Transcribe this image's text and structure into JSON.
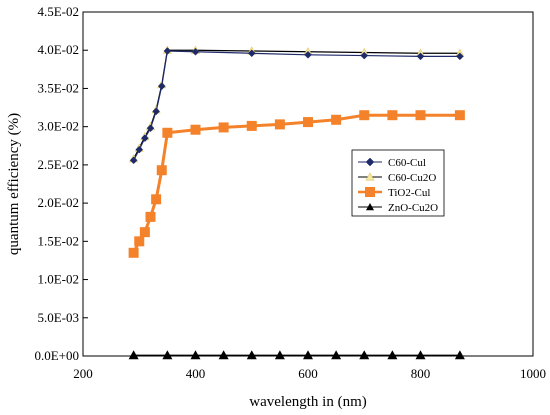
{
  "chart_data": {
    "type": "line",
    "title": "",
    "xlabel": "wavelength in (nm)",
    "ylabel": "quantum efficiency (%)",
    "xlim": [
      200,
      1000
    ],
    "ylim": [
      0,
      0.045
    ],
    "x_ticks": [
      "200",
      "400",
      "600",
      "800",
      "1000"
    ],
    "y_ticks": [
      "0.0E+00",
      "5.0E-03",
      "1.0E-02",
      "1.5E-02",
      "2.0E-02",
      "2.5E-02",
      "3.0E-02",
      "3.5E-02",
      "4.0E-02",
      "4.5E-02"
    ],
    "grid": false,
    "legend_position": "right",
    "series": [
      {
        "name": "C60-Cul",
        "color": "#1f2a6b",
        "marker": "diamond",
        "x": [
          290,
          300,
          310,
          320,
          330,
          340,
          350,
          400,
          500,
          600,
          700,
          800,
          870
        ],
        "values": [
          0.0256,
          0.027,
          0.0285,
          0.0298,
          0.032,
          0.0353,
          0.0399,
          0.0398,
          0.0396,
          0.0394,
          0.0393,
          0.0392,
          0.0392
        ]
      },
      {
        "name": "C60-Cu2O",
        "color": "#000000",
        "marker": "triangle-light",
        "x": [
          290,
          300,
          310,
          320,
          330,
          340,
          350,
          400,
          500,
          600,
          700,
          800,
          870
        ],
        "values": [
          0.0258,
          0.0272,
          0.0287,
          0.03,
          0.0322,
          0.0355,
          0.04,
          0.04,
          0.0399,
          0.0398,
          0.0397,
          0.0396,
          0.0396
        ]
      },
      {
        "name": "TiO2-Cul",
        "color": "#f4822a",
        "marker": "square",
        "x": [
          290,
          300,
          310,
          320,
          330,
          340,
          350,
          400,
          450,
          500,
          550,
          600,
          650,
          700,
          750,
          800,
          870
        ],
        "values": [
          0.0135,
          0.015,
          0.0162,
          0.0182,
          0.0205,
          0.0243,
          0.0292,
          0.0296,
          0.0299,
          0.0301,
          0.0303,
          0.0306,
          0.0309,
          0.0315,
          0.0315,
          0.0315,
          0.0315
        ]
      },
      {
        "name": "ZnO-Cu2O",
        "color": "#000000",
        "marker": "triangle",
        "x": [
          290,
          350,
          400,
          450,
          500,
          550,
          600,
          650,
          700,
          750,
          800,
          870
        ],
        "values": [
          0.0001,
          0.0001,
          0.0001,
          0.0001,
          0.0001,
          0.0001,
          0.0001,
          0.0001,
          0.0001,
          0.0001,
          0.0001,
          0.0001
        ]
      }
    ]
  }
}
